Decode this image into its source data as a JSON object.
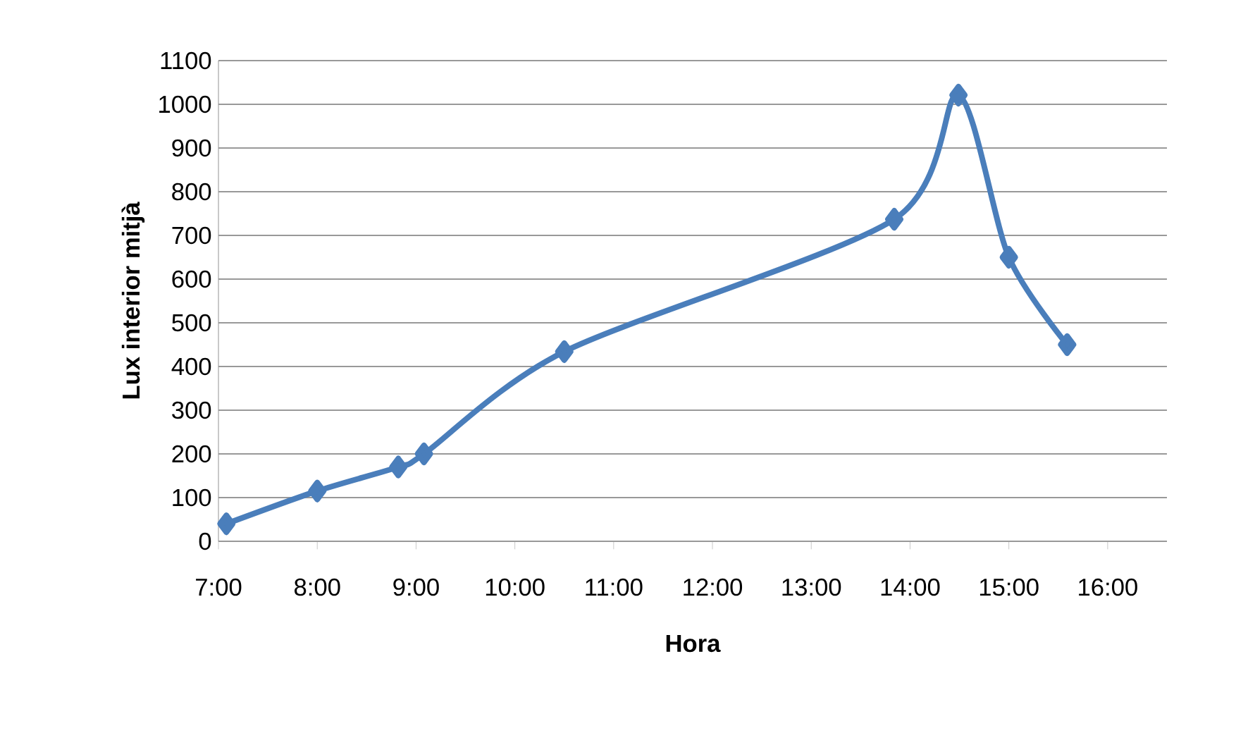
{
  "chart_data": {
    "type": "line",
    "xlabel": "Hora",
    "ylabel": "Lux interior mitjà",
    "x": [
      7.08,
      8.0,
      8.82,
      9.08,
      10.5,
      13.84,
      14.49,
      15.0,
      15.59
    ],
    "series": [
      {
        "color": "#4a7ebb",
        "values": [
          40,
          115,
          170,
          200,
          434,
          737,
          1021,
          650,
          450
        ]
      }
    ],
    "xlim": [
      7,
      16.6
    ],
    "ylim": [
      0,
      1100
    ],
    "xticks": [
      {
        "value": 7,
        "label": "7:00"
      },
      {
        "value": 8,
        "label": "8:00"
      },
      {
        "value": 9,
        "label": "9:00"
      },
      {
        "value": 10,
        "label": "10:00"
      },
      {
        "value": 11,
        "label": "11:00"
      },
      {
        "value": 12,
        "label": "12:00"
      },
      {
        "value": 13,
        "label": "13:00"
      },
      {
        "value": 14,
        "label": "14:00"
      },
      {
        "value": 15,
        "label": "15:00"
      },
      {
        "value": 16,
        "label": "16:00"
      }
    ],
    "yticks": [
      0,
      100,
      200,
      300,
      400,
      500,
      600,
      700,
      800,
      900,
      1000,
      1100
    ],
    "grid": "y",
    "marker": "diamond",
    "line_style": "solid"
  }
}
